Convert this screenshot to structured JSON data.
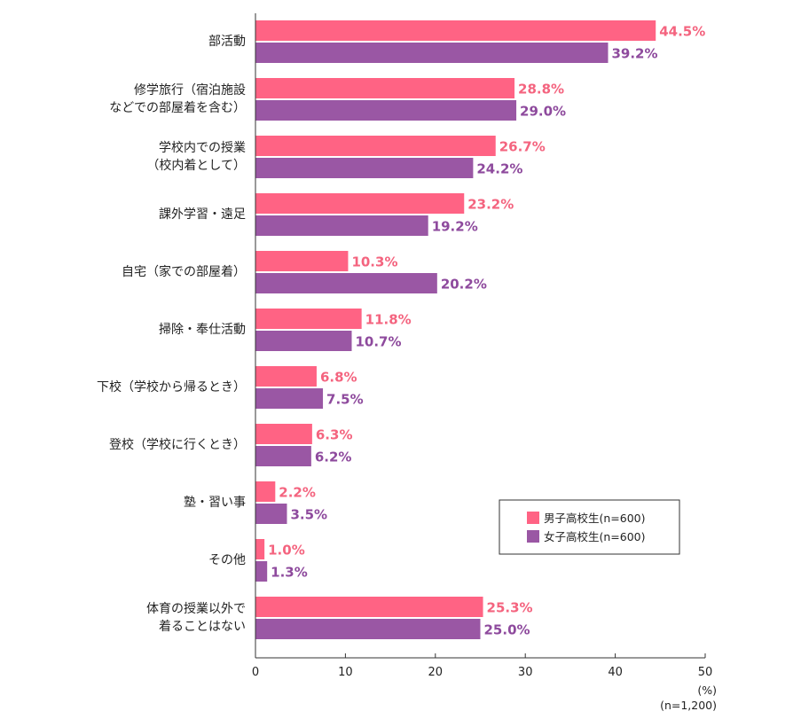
{
  "chart_data": {
    "type": "bar",
    "orientation": "horizontal",
    "title": "",
    "xlabel": "",
    "ylabel": "",
    "xlim": [
      0,
      50
    ],
    "ticks": [
      0,
      10,
      20,
      30,
      40,
      50
    ],
    "unit_label": "(%)",
    "sample_note": "(n=1,200)",
    "categories": [
      [
        "部活動"
      ],
      [
        "修学旅行（宿泊施設",
        "などでの部屋着を含む）"
      ],
      [
        "学校内での授業",
        "（校内着として）"
      ],
      [
        "課外学習・遠足"
      ],
      [
        "自宅（家での部屋着）"
      ],
      [
        "掃除・奉仕活動"
      ],
      [
        "下校（学校から帰るとき）"
      ],
      [
        "登校（学校に行くとき）"
      ],
      [
        "塾・習い事"
      ],
      [
        "その他"
      ],
      [
        "体育の授業以外で",
        "着ることはない"
      ]
    ],
    "series": [
      {
        "name": "男子高校生(n=600)",
        "color": "#ff6384",
        "label_color": "#f4647f",
        "values": [
          44.5,
          28.8,
          26.7,
          23.2,
          10.3,
          11.8,
          6.8,
          6.3,
          2.2,
          1.0,
          25.3
        ],
        "labels": [
          "44.5%",
          "28.8%",
          "26.7%",
          "23.2%",
          "10.3%",
          "11.8%",
          "6.8%",
          "6.3%",
          "2.2%",
          "1.0%",
          "25.3%"
        ]
      },
      {
        "name": "女子高校生(n=600)",
        "color": "#9a57a4",
        "label_color": "#8e4a9d",
        "values": [
          39.2,
          29.0,
          24.2,
          19.2,
          20.2,
          10.7,
          7.5,
          6.2,
          3.5,
          1.3,
          25.0
        ],
        "labels": [
          "39.2%",
          "29.0%",
          "24.2%",
          "19.2%",
          "20.2%",
          "10.7%",
          "7.5%",
          "6.2%",
          "3.5%",
          "1.3%",
          "25.0%"
        ]
      }
    ],
    "legend": {
      "placement": "bottom-right",
      "entries": [
        "男子高校生(n=600)",
        "女子高校生(n=600)"
      ]
    }
  }
}
